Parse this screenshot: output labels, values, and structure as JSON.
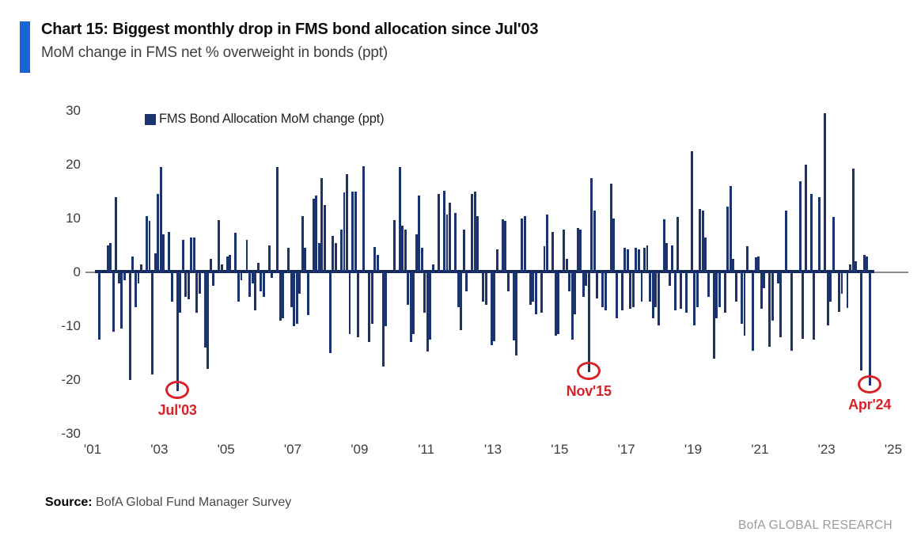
{
  "header": {
    "title": "Chart 15: Biggest monthly drop in FMS bond allocation since Jul'03",
    "subtitle": "MoM change in FMS net % overweight in bonds (ppt)"
  },
  "legend": {
    "label": "FMS Bond Allocation MoM change (ppt)"
  },
  "footer": {
    "source_label": "Source:",
    "source_text": " BofA Global Fund Manager Survey",
    "branding": "BofA GLOBAL RESEARCH"
  },
  "colors": {
    "bar": "#1b3470",
    "accent": "#1766d1",
    "annotation_red": "#d6232a",
    "axis_navy": "#13295c",
    "axis_gray": "#8c8c8c"
  },
  "chart_data": {
    "type": "bar",
    "title": "Chart 15: Biggest monthly drop in FMS bond allocation since Jul'03",
    "subtitle": "MoM change in FMS net % overweight in bonds (ppt)",
    "series_name": "FMS Bond Allocation MoM change (ppt)",
    "unit": "ppt",
    "frequency": "monthly",
    "start": "Jan 2001",
    "end": "Apr 2024",
    "grid": false,
    "legend_position": "top-left-inside",
    "ylim": [
      -30,
      30
    ],
    "yticks": [
      30,
      20,
      10,
      0,
      -10,
      -20,
      -30
    ],
    "x_axis_months_span": 288,
    "xticks": [
      {
        "label": "'01",
        "month": 0
      },
      {
        "label": "'03",
        "month": 24
      },
      {
        "label": "'05",
        "month": 48
      },
      {
        "label": "'07",
        "month": 72
      },
      {
        "label": "'09",
        "month": 96
      },
      {
        "label": "'11",
        "month": 120
      },
      {
        "label": "'13",
        "month": 144
      },
      {
        "label": "'15",
        "month": 168
      },
      {
        "label": "'17",
        "month": 192
      },
      {
        "label": "'19",
        "month": 216
      },
      {
        "label": "'21",
        "month": 240
      },
      {
        "label": "'23",
        "month": 264
      },
      {
        "label": "'25",
        "month": 288
      }
    ],
    "values": [
      0,
      0,
      -12.5,
      0,
      0,
      5,
      5.5,
      -11,
      14,
      -2,
      -10.5,
      -1.5,
      0,
      -20,
      3,
      -6.5,
      -2,
      1.5,
      0,
      10.5,
      9.5,
      -19,
      3.5,
      14.5,
      19.5,
      7,
      0,
      7.5,
      -5.5,
      0,
      -22,
      -7.5,
      6,
      -4.5,
      -5,
      6.5,
      6.5,
      -7.5,
      -4,
      0,
      -14,
      -18,
      2.5,
      -2.5,
      0,
      9.7,
      1.5,
      0,
      3,
      3.2,
      0,
      7.3,
      -5.5,
      -1.5,
      0,
      6,
      -4.5,
      -2,
      -7,
      1.8,
      -3.5,
      -4.5,
      0,
      5,
      -1,
      0,
      19.5,
      -9,
      -8.5,
      0,
      4.5,
      -6.5,
      -10,
      -9.5,
      -4,
      10.5,
      4.5,
      -8,
      0,
      13.7,
      14.2,
      5.5,
      17.5,
      12.5,
      0,
      -15,
      6.8,
      5.5,
      0,
      8,
      14.8,
      18.3,
      -11.5,
      15,
      15,
      -12,
      0,
      19.7,
      0,
      -13,
      -9.5,
      4.7,
      3.3,
      0,
      -17.5,
      -10,
      0,
      0,
      9.7,
      0,
      19.6,
      8.7,
      8,
      -6,
      -13,
      -11.5,
      7,
      14.3,
      4.5,
      -7.5,
      -14.7,
      -12.5,
      1.5,
      0,
      14.5,
      0,
      15.2,
      10.8,
      13,
      0,
      11,
      -6.5,
      -10.8,
      8,
      -3.5,
      0,
      14.6,
      15,
      10.5,
      0,
      -5.5,
      -6,
      0,
      -13.5,
      -12.8,
      4.3,
      0,
      9.8,
      9.5,
      -3.5,
      0,
      -12.7,
      -15.5,
      0,
      10,
      10.5,
      0,
      -6,
      -5.5,
      -7.8,
      0,
      -7.5,
      4.8,
      10.8,
      0,
      7.5,
      -11.8,
      -11.5,
      0,
      8,
      2.5,
      -3.5,
      -12.5,
      -7.8,
      8.2,
      8,
      -4.5,
      -2.5,
      -18.5,
      17.5,
      11.5,
      -4.8,
      0,
      -6.5,
      -7,
      0,
      16.5,
      10,
      -8.5,
      0,
      -7,
      4.5,
      4.3,
      -6.8,
      -6.5,
      4.5,
      4.2,
      -5.5,
      4.5,
      5,
      -5.5,
      -8.5,
      -6.5,
      -9.8,
      0,
      9.8,
      5.5,
      -2.5,
      5,
      -7,
      10.3,
      -6.8,
      0,
      -7.5,
      0,
      22.5,
      -9.8,
      -6.5,
      11.8,
      11.5,
      6.5,
      -4.5,
      0,
      -16,
      -8.5,
      -6.5,
      0,
      -7.5,
      12.2,
      16,
      2.5,
      -5.5,
      0,
      -9.5,
      -11.8,
      4.8,
      0,
      -14.6,
      2.8,
      3,
      -6.8,
      -3,
      0,
      -13.8,
      -9,
      0,
      -2,
      -12,
      0,
      11.5,
      0,
      -14.5,
      0,
      0,
      16.9,
      -12.3,
      20,
      0,
      14.6,
      -12.5,
      0,
      14,
      0,
      29.5,
      -9.8,
      -5.4,
      10.3,
      0,
      -7.4,
      -4,
      0,
      -6.6,
      1.5,
      19.3,
      2,
      0,
      -18.2,
      3.3,
      3,
      -21
    ],
    "annotations": [
      {
        "label": "Jul'03",
        "month": 30,
        "value": -22
      },
      {
        "label": "Nov'15",
        "month": 178,
        "value": -18.5
      },
      {
        "label": "Apr'24",
        "month": 279,
        "value": -21
      }
    ]
  }
}
